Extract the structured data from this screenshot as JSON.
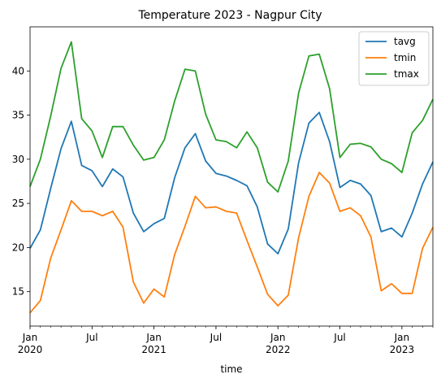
{
  "chart_data": {
    "type": "line",
    "title": "Temperature 2023 - Nagpur City",
    "xlabel": "time",
    "ylabel": "",
    "ylim": [
      11.1,
      45
    ],
    "yticks": [
      15,
      20,
      25,
      30,
      35,
      40
    ],
    "xlim": [
      "2020-01",
      "2023-04"
    ],
    "xticks": [
      {
        "date": "2020-01",
        "line1": "Jan",
        "line2": "2020"
      },
      {
        "date": "2020-07",
        "line1": "Jul",
        "line2": ""
      },
      {
        "date": "2021-01",
        "line1": "Jan",
        "line2": "2021"
      },
      {
        "date": "2021-07",
        "line1": "Jul",
        "line2": ""
      },
      {
        "date": "2022-01",
        "line1": "Jan",
        "line2": "2022"
      },
      {
        "date": "2022-07",
        "line1": "Jul",
        "line2": ""
      },
      {
        "date": "2023-01",
        "line1": "Jan",
        "line2": "2023"
      }
    ],
    "legend_position": "top-right",
    "grid": false,
    "x": [
      "2020-01",
      "2020-02",
      "2020-03",
      "2020-04",
      "2020-05",
      "2020-06",
      "2020-07",
      "2020-08",
      "2020-09",
      "2020-10",
      "2020-11",
      "2020-12",
      "2021-01",
      "2021-02",
      "2021-03",
      "2021-04",
      "2021-05",
      "2021-06",
      "2021-07",
      "2021-08",
      "2021-09",
      "2021-10",
      "2021-11",
      "2021-12",
      "2022-01",
      "2022-02",
      "2022-03",
      "2022-04",
      "2022-05",
      "2022-06",
      "2022-07",
      "2022-08",
      "2022-09",
      "2022-10",
      "2022-11",
      "2022-12",
      "2023-01",
      "2023-02",
      "2023-03",
      "2023-04"
    ],
    "series": [
      {
        "name": "tavg",
        "color": "#1f77b4",
        "values": [
          19.9,
          22.0,
          26.7,
          31.2,
          34.3,
          29.3,
          28.7,
          26.9,
          28.9,
          28.0,
          23.9,
          21.8,
          22.7,
          23.3,
          27.9,
          31.3,
          32.9,
          29.8,
          28.4,
          28.1,
          27.6,
          27.0,
          24.6,
          20.4,
          19.3,
          22.1,
          29.6,
          34.1,
          35.3,
          32.0,
          26.8,
          27.6,
          27.2,
          25.9,
          21.8,
          22.2,
          21.2,
          23.9,
          27.2,
          29.7
        ]
      },
      {
        "name": "tmin",
        "color": "#ff7f0e",
        "values": [
          12.6,
          14.0,
          18.8,
          22.0,
          25.3,
          24.1,
          24.1,
          23.6,
          24.1,
          22.3,
          16.1,
          13.7,
          15.3,
          14.4,
          19.2,
          22.4,
          25.8,
          24.5,
          24.6,
          24.1,
          23.9,
          20.8,
          17.8,
          14.7,
          13.4,
          14.6,
          21.1,
          25.8,
          28.5,
          27.3,
          24.1,
          24.5,
          23.6,
          21.2,
          15.1,
          15.9,
          14.8,
          14.8,
          19.9,
          22.3
        ]
      },
      {
        "name": "tmax",
        "color": "#2ca02c",
        "values": [
          26.9,
          30.0,
          34.9,
          40.3,
          43.3,
          34.6,
          33.2,
          30.2,
          33.7,
          33.7,
          31.6,
          29.9,
          30.2,
          32.2,
          36.6,
          40.2,
          40.0,
          35.1,
          32.2,
          32.0,
          31.3,
          33.1,
          31.3,
          27.4,
          26.3,
          29.8,
          37.5,
          41.7,
          41.9,
          38.0,
          30.2,
          31.7,
          31.8,
          31.4,
          30.0,
          29.5,
          28.5,
          33.0,
          34.4,
          36.8
        ]
      }
    ]
  }
}
